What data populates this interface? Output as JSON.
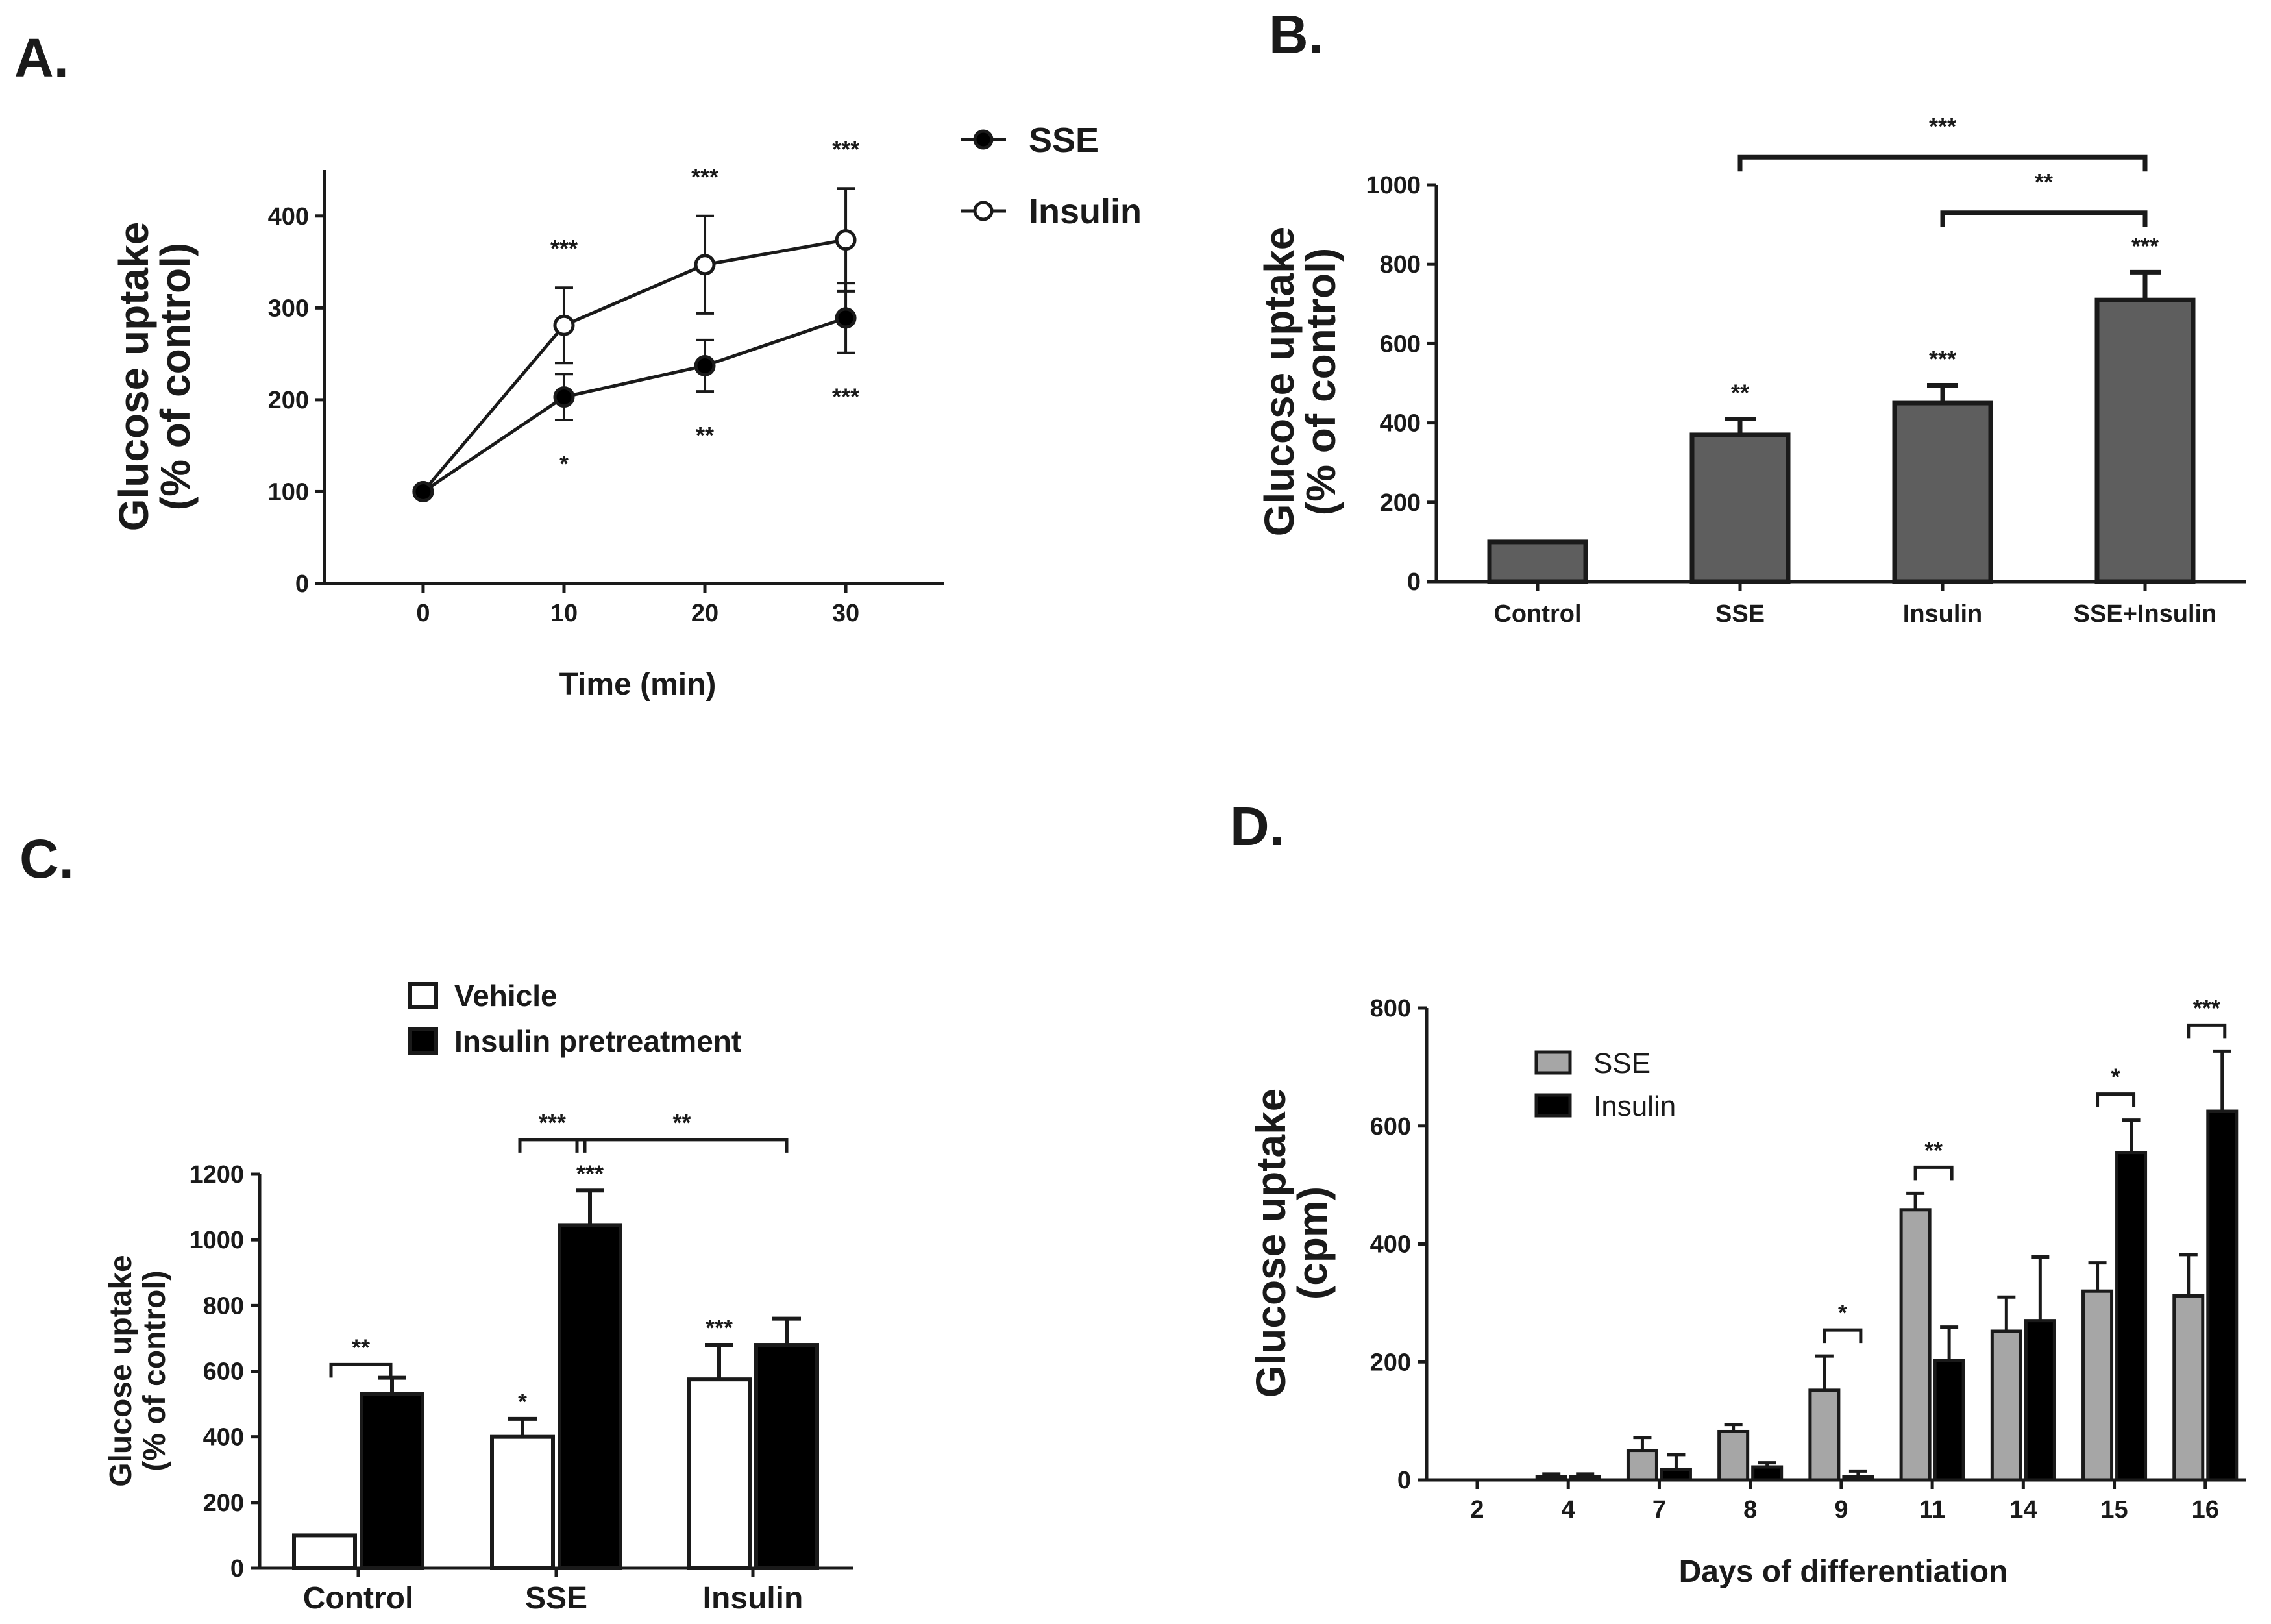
{
  "colors": {
    "axis": "#1a1a1a",
    "bar_dark_gray": "#5e5e5e",
    "bar_light_gray": "#a6a6a6",
    "black": "#000000",
    "white": "#ffffff"
  },
  "chart_data": [
    {
      "panel": "A.",
      "type": "line",
      "title": "",
      "xlabel": "Time (min)",
      "ylabel_line1": "Glucose uptake",
      "ylabel_line2": "(% of control)",
      "xlim": [
        -7,
        37
      ],
      "ylim": [
        0,
        450
      ],
      "xticks": [
        0,
        10,
        20,
        30
      ],
      "yticks": [
        0,
        100,
        200,
        300,
        400
      ],
      "x": [
        0,
        10,
        20,
        30
      ],
      "series": [
        {
          "name": "SSE",
          "marker": "filled",
          "values": [
            100,
            203,
            237,
            289
          ],
          "errors": [
            0,
            25,
            28,
            38
          ],
          "annotations": [
            "",
            "*",
            "**",
            "***"
          ],
          "annotation_position": "below"
        },
        {
          "name": "Insulin",
          "marker": "open",
          "values": [
            100,
            281,
            347,
            374
          ],
          "errors": [
            0,
            41,
            53,
            56
          ],
          "annotations": [
            "",
            "***",
            "***",
            "***"
          ],
          "annotation_position": "above"
        }
      ]
    },
    {
      "panel": "B.",
      "type": "bar",
      "title": "",
      "xlabel": "",
      "ylabel_line1": "Glucose uptake",
      "ylabel_line2": "(% of control)",
      "ylim": [
        0,
        1000
      ],
      "yticks": [
        0,
        200,
        400,
        600,
        800,
        1000
      ],
      "categories": [
        "Control",
        "SSE",
        "Insulin",
        "SSE+Insulin"
      ],
      "values": [
        100,
        370,
        450,
        710
      ],
      "errors": [
        0,
        40,
        45,
        70
      ],
      "annotations": [
        "",
        "**",
        "***",
        "***"
      ],
      "brackets": [
        {
          "from": 1,
          "to": 3,
          "label": "***",
          "y": 1070
        },
        {
          "from": 2,
          "to": 3,
          "label": "**",
          "y": 930
        }
      ]
    },
    {
      "panel": "C.",
      "type": "bar",
      "title": "",
      "xlabel": "",
      "ylabel_line1": "Glucose uptake",
      "ylabel_line2": "(% of control)",
      "ylim": [
        0,
        1200
      ],
      "yticks": [
        0,
        200,
        400,
        600,
        800,
        1000,
        1200
      ],
      "categories": [
        "Control",
        "SSE",
        "Insulin"
      ],
      "series": [
        {
          "name": "Vehicle",
          "values": [
            100,
            400,
            575
          ],
          "errors": [
            0,
            55,
            105
          ],
          "annotations": [
            "",
            "*",
            "***"
          ]
        },
        {
          "name": "Insulin pretreatment",
          "values": [
            530,
            1045,
            680
          ],
          "errors": [
            50,
            105,
            80
          ],
          "annotations": [
            "",
            "***",
            ""
          ]
        }
      ],
      "brackets": [
        {
          "label": "**",
          "y": 620
        },
        {
          "label": "***",
          "y": 1305
        },
        {
          "label": "**",
          "y": 1305
        }
      ]
    },
    {
      "panel": "D.",
      "type": "bar",
      "title": "",
      "xlabel": "Days of differentiation",
      "ylabel_line1": "Glucose uptake",
      "ylabel_line2": "(cpm)",
      "ylim": [
        0,
        800
      ],
      "yticks": [
        0,
        200,
        400,
        600,
        800
      ],
      "categories": [
        "2",
        "4",
        "7",
        "8",
        "9",
        "11",
        "14",
        "15",
        "16"
      ],
      "series": [
        {
          "name": "SSE",
          "values": [
            0,
            5,
            50,
            82,
            152,
            458,
            252,
            320,
            312
          ],
          "errors": [
            0,
            5,
            22,
            12,
            58,
            28,
            58,
            48,
            70
          ]
        },
        {
          "name": "Insulin",
          "values": [
            0,
            5,
            18,
            22,
            5,
            202,
            270,
            555,
            625
          ],
          "errors": [
            0,
            5,
            25,
            7,
            10,
            57,
            108,
            55,
            102
          ]
        }
      ],
      "brackets": [
        {
          "category": "9",
          "label": "*"
        },
        {
          "category": "11",
          "label": "**"
        },
        {
          "category": "15",
          "label": "*"
        },
        {
          "category": "16",
          "label": "***"
        }
      ]
    }
  ]
}
